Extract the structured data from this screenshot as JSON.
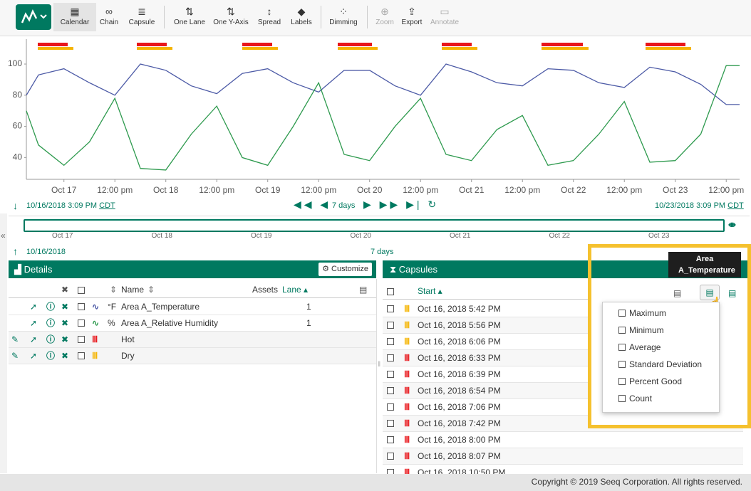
{
  "toolbar": {
    "buttons": [
      "Calendar",
      "Chain",
      "Capsule",
      "One Lane",
      "One Y-Axis",
      "Spread",
      "Labels",
      "Dimming",
      "Zoom",
      "Export",
      "Annotate"
    ]
  },
  "chart_data": {
    "type": "line",
    "x": [
      "2018-10-16T15:09",
      "2018-10-16T18:00",
      "2018-10-17T00:00",
      "2018-10-17T06:00",
      "2018-10-17T12:00",
      "2018-10-17T18:00",
      "2018-10-18T00:00",
      "2018-10-18T06:00",
      "2018-10-18T12:00",
      "2018-10-18T18:00",
      "2018-10-19T00:00",
      "2018-10-19T06:00",
      "2018-10-19T12:00",
      "2018-10-19T18:00",
      "2018-10-20T00:00",
      "2018-10-20T06:00",
      "2018-10-20T12:00",
      "2018-10-20T18:00",
      "2018-10-21T00:00",
      "2018-10-21T06:00",
      "2018-10-21T12:00",
      "2018-10-21T18:00",
      "2018-10-22T00:00",
      "2018-10-22T06:00",
      "2018-10-22T12:00",
      "2018-10-22T18:00",
      "2018-10-23T00:00",
      "2018-10-23T06:00",
      "2018-10-23T12:00",
      "2018-10-23T15:09"
    ],
    "series": [
      {
        "name": "Area A_Temperature",
        "color": "#4c5aa6",
        "values": [
          80,
          93,
          97,
          88,
          80,
          100,
          96,
          86,
          81,
          94,
          97,
          88,
          82,
          96,
          96,
          86,
          80,
          100,
          95,
          88,
          86,
          97,
          96,
          88,
          85,
          98,
          95,
          87,
          74,
          74
        ]
      },
      {
        "name": "Area A_Relative Humidity",
        "color": "#2e9a4e",
        "values": [
          70,
          48,
          35,
          50,
          78,
          33,
          32,
          55,
          73,
          40,
          35,
          60,
          88,
          42,
          38,
          60,
          78,
          42,
          38,
          58,
          67,
          35,
          38,
          55,
          76,
          37,
          38,
          55,
          99,
          99
        ]
      }
    ],
    "xlim": [
      "2018-10-16T15:09",
      "2018-10-23T15:09"
    ],
    "ylim": [
      26,
      116
    ],
    "yticks": [
      40,
      60,
      80,
      100
    ],
    "xticks": [
      {
        "value": "2018-10-17T00:00",
        "label": "Oct 17"
      },
      {
        "value": "2018-10-17T12:00",
        "label": "12:00 pm"
      },
      {
        "value": "2018-10-18T00:00",
        "label": "Oct 18"
      },
      {
        "value": "2018-10-18T12:00",
        "label": "12:00 pm"
      },
      {
        "value": "2018-10-19T00:00",
        "label": "Oct 19"
      },
      {
        "value": "2018-10-19T12:00",
        "label": "12:00 pm"
      },
      {
        "value": "2018-10-20T00:00",
        "label": "Oct 20"
      },
      {
        "value": "2018-10-20T12:00",
        "label": "12:00 pm"
      },
      {
        "value": "2018-10-21T00:00",
        "label": "Oct 21"
      },
      {
        "value": "2018-10-21T12:00",
        "label": "12:00 pm"
      },
      {
        "value": "2018-10-22T00:00",
        "label": "Oct 22"
      },
      {
        "value": "2018-10-22T12:00",
        "label": "12:00 pm"
      },
      {
        "value": "2018-10-23T00:00",
        "label": "Oct 23"
      },
      {
        "value": "2018-10-23T12:00",
        "label": "12:00 pm"
      }
    ]
  },
  "time_range": {
    "start": "10/16/2018 3:09 PM",
    "start_tz": "CDT",
    "duration": "7 days",
    "end": "10/23/2018 3:09 PM",
    "end_tz": "CDT"
  },
  "navigator": {
    "labels": [
      "Oct 17",
      "Oct 18",
      "Oct 19",
      "Oct 20",
      "Oct 21",
      "Oct 22",
      "Oct 23"
    ],
    "start": "10/16/2018",
    "duration": "7 days"
  },
  "details": {
    "title": "Details",
    "customize": "Customize",
    "columns": {
      "name": "Name",
      "assets": "Assets",
      "lane": "Lane"
    },
    "rows": [
      {
        "unit": "°F",
        "lane": 1
      },
      {
        "unit": "%",
        "lane": 1
      },
      {
        "name": "Hot"
      },
      {
        "name": "Dry"
      }
    ]
  },
  "capsules": {
    "title": "Capsules",
    "start_header": "Start",
    "rows": [
      "Oct 16, 2018 5:42 PM",
      "Oct 16, 2018 5:56 PM",
      "Oct 16, 2018 6:06 PM",
      "Oct 16, 2018 6:33 PM",
      "Oct 16, 2018 6:39 PM",
      "Oct 16, 2018 6:54 PM",
      "Oct 16, 2018 7:06 PM",
      "Oct 16, 2018 7:42 PM",
      "Oct 16, 2018 8:00 PM",
      "Oct 16, 2018 8:07 PM",
      "Oct 16, 2018 10:50 PM"
    ]
  },
  "column_menu": {
    "items": [
      "Maximum",
      "Minimum",
      "Average",
      "Standard Deviation",
      "Percent Good",
      "Count"
    ]
  },
  "tooltip": "Area A_Temperature",
  "footer": "Copyright © 2019 Seeq Corporation. All rights reserved."
}
